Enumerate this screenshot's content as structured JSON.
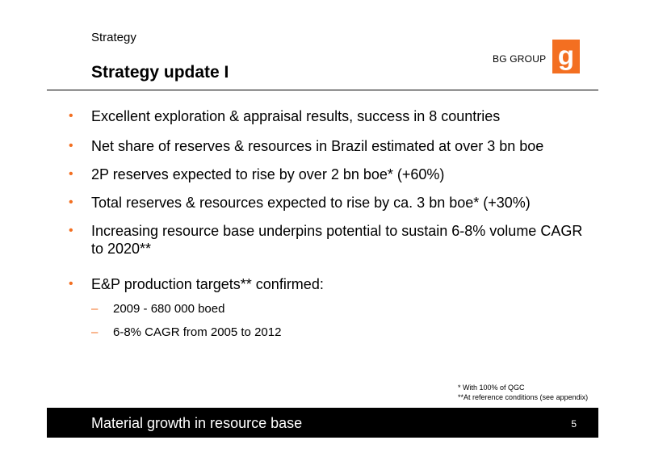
{
  "header": {
    "section": "Strategy",
    "title": "Strategy update I",
    "logo_text": "BG GROUP",
    "logo_color": "#f36f21"
  },
  "bullets": [
    {
      "marker": "•",
      "text": "Excellent exploration & appraisal results, success in 8 countries"
    },
    {
      "marker": "•",
      "text": "Net share of reserves & resources in Brazil estimated at over 3 bn boe"
    },
    {
      "marker": "•",
      "text": "2P reserves expected to rise by over 2 bn boe* (+60%)"
    },
    {
      "marker": "•",
      "text": "Total reserves & resources expected to rise by ca. 3 bn boe* (+30%)"
    },
    {
      "marker": "•",
      "text": "Increasing resource base underpins potential to sustain 6-8% volume CAGR to 2020**"
    },
    {
      "marker": "•",
      "text": "E&P production targets** confirmed:"
    }
  ],
  "sub_bullets": [
    {
      "marker": "–",
      "text": "2009 - 680 000 boed"
    },
    {
      "marker": "–",
      "text": "6-8% CAGR from 2005 to 2012"
    }
  ],
  "footnotes": [
    "* With 100% of QGC",
    "**At reference conditions (see appendix)"
  ],
  "footer": {
    "text": "Material growth in resource base",
    "page_number": "5"
  }
}
